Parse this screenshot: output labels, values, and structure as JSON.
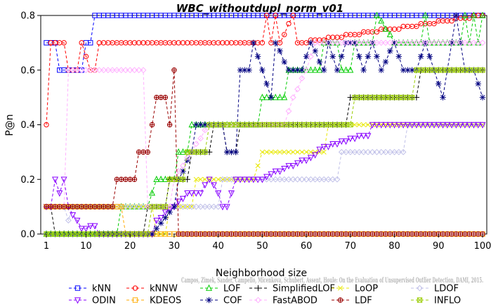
{
  "chart_data": {
    "type": "line",
    "title": "WBC_withoutdupl_norm_v01",
    "xlabel": "Neighborhood size",
    "ylabel": "P@n",
    "xlim": [
      1,
      100
    ],
    "ylim": [
      0,
      0.8
    ],
    "xticks": [
      1,
      10,
      20,
      30,
      40,
      50,
      60,
      70,
      80,
      90,
      100
    ],
    "yticks": [
      0.0,
      0.2,
      0.4,
      0.6,
      0.8
    ],
    "ytick_labels": [
      "0.0",
      "0.2",
      "0.4",
      "0.6",
      "0.8"
    ],
    "grid": false,
    "legend_position": "bottom",
    "credit": "Campos, Zimek, Sander, Campello, Micenkova, Schubert, Assent, Houle: On the Evaluation of Unsupervised Outlier Detection, DAMI, 2015.",
    "series": [
      {
        "name": "kNN",
        "color": "#0000ff",
        "marker": "square",
        "points": [
          [
            1,
            0.7
          ],
          [
            3,
            0.7
          ],
          [
            4,
            0.6
          ],
          [
            9,
            0.6
          ],
          [
            10,
            0.7
          ],
          [
            11,
            0.7
          ],
          [
            12,
            0.8
          ],
          [
            100,
            0.8
          ]
        ]
      },
      {
        "name": "kNNW",
        "color": "#ff0000",
        "marker": "circle",
        "points": [
          [
            1,
            0.4
          ],
          [
            2,
            0.7
          ],
          [
            5,
            0.7
          ],
          [
            6,
            0.6
          ],
          [
            8,
            0.6
          ],
          [
            9,
            0.7
          ],
          [
            11,
            0.6
          ],
          [
            12,
            0.6
          ],
          [
            13,
            0.7
          ],
          [
            50,
            0.7
          ],
          [
            51,
            0.8
          ],
          [
            52,
            0.7
          ],
          [
            53,
            0.8
          ],
          [
            54,
            0.7
          ],
          [
            57,
            0.8
          ],
          [
            58,
            0.7
          ],
          [
            100,
            0.8
          ]
        ]
      },
      {
        "name": "LOF",
        "color": "#00cc00",
        "marker": "triangle-up",
        "points": [
          [
            1,
            0
          ],
          [
            17,
            0
          ],
          [
            18,
            0.1
          ],
          [
            24,
            0.1
          ],
          [
            26,
            0.2
          ],
          [
            30,
            0.2
          ],
          [
            31,
            0.3
          ],
          [
            33,
            0.3
          ],
          [
            34,
            0.4
          ],
          [
            49,
            0.4
          ],
          [
            50,
            0.5
          ],
          [
            55,
            0.5
          ],
          [
            56,
            0.6
          ],
          [
            63,
            0.6
          ],
          [
            64,
            0.7
          ],
          [
            67,
            0.7
          ],
          [
            68,
            0.6
          ],
          [
            70,
            0.6
          ],
          [
            71,
            0.7
          ],
          [
            75,
            0.7
          ],
          [
            76,
            0.8
          ],
          [
            80,
            0.7
          ],
          [
            86,
            0.7
          ],
          [
            87,
            0.8
          ],
          [
            88,
            0.7
          ],
          [
            95,
            0.7
          ],
          [
            96,
            0.8
          ],
          [
            97,
            0.7
          ],
          [
            98,
            0.8
          ],
          [
            99,
            0.7
          ],
          [
            100,
            0.8
          ]
        ]
      },
      {
        "name": "SimplifiedLOF",
        "color": "#000000",
        "marker": "plus",
        "points": [
          [
            1,
            0.1
          ],
          [
            2,
            0.1
          ],
          [
            3,
            0
          ],
          [
            23,
            0
          ],
          [
            24,
            0.1
          ],
          [
            28,
            0.1
          ],
          [
            29,
            0.2
          ],
          [
            33,
            0.2
          ],
          [
            34,
            0.3
          ],
          [
            38,
            0.3
          ],
          [
            39,
            0.4
          ],
          [
            41,
            0.4
          ],
          [
            42,
            0.3
          ],
          [
            44,
            0.3
          ],
          [
            45,
            0.4
          ],
          [
            69,
            0.4
          ],
          [
            70,
            0.5
          ],
          [
            85,
            0.5
          ],
          [
            86,
            0.6
          ],
          [
            100,
            0.6
          ]
        ]
      },
      {
        "name": "LoOP",
        "color": "#e8e800",
        "marker": "x",
        "points": [
          [
            1,
            0.1
          ],
          [
            22,
            0.1
          ],
          [
            25,
            0.1
          ],
          [
            26,
            0
          ],
          [
            28,
            0
          ],
          [
            29,
            0.1
          ],
          [
            34,
            0.1
          ],
          [
            35,
            0.2
          ],
          [
            48,
            0.2
          ],
          [
            50,
            0.3
          ],
          [
            55,
            0.3
          ],
          [
            60,
            0.3
          ],
          [
            64,
            0.3
          ],
          [
            65,
            0.4
          ],
          [
            100,
            0.4
          ]
        ]
      },
      {
        "name": "LDOF",
        "color": "#c0c0e8",
        "marker": "diamond",
        "points": [
          [
            1,
            0.1
          ],
          [
            5,
            0.1
          ],
          [
            6,
            0.05
          ],
          [
            7,
            0.1
          ],
          [
            40,
            0.1
          ],
          [
            41,
            0.2
          ],
          [
            49,
            0.2
          ],
          [
            50,
            0.2
          ],
          [
            67,
            0.2
          ],
          [
            68,
            0.3
          ],
          [
            82,
            0.3
          ],
          [
            83,
            0.4
          ],
          [
            100,
            0.4
          ]
        ]
      },
      {
        "name": "ODIN",
        "color": "#8800ff",
        "marker": "triangle-down",
        "points": [
          [
            1,
            0.1
          ],
          [
            2,
            0.1
          ],
          [
            3,
            0.2
          ],
          [
            4,
            0.15
          ],
          [
            5,
            0.2
          ],
          [
            6,
            0.1
          ],
          [
            7,
            0.07
          ],
          [
            8,
            0.05
          ],
          [
            9,
            0.02
          ],
          [
            10,
            0.02
          ],
          [
            11,
            0.03
          ],
          [
            12,
            0.03
          ],
          [
            13,
            0
          ],
          [
            25,
            0
          ],
          [
            26,
            0.05
          ],
          [
            30,
            0.1
          ],
          [
            33,
            0.15
          ],
          [
            36,
            0.15
          ],
          [
            38,
            0.2
          ],
          [
            40,
            0.15
          ],
          [
            41,
            0.1
          ],
          [
            42,
            0.1
          ],
          [
            44,
            0.2
          ],
          [
            50,
            0.2
          ],
          [
            52,
            0.22
          ],
          [
            55,
            0.24
          ],
          [
            58,
            0.26
          ],
          [
            61,
            0.28
          ],
          [
            64,
            0.32
          ],
          [
            69,
            0.34
          ],
          [
            72,
            0.36
          ],
          [
            74,
            0.36
          ],
          [
            75,
            0.4
          ],
          [
            100,
            0.4
          ]
        ]
      },
      {
        "name": "KDEOS",
        "color": "#ffaa00",
        "marker": "square",
        "points": [
          [
            1,
            0.1
          ],
          [
            18,
            0.1
          ],
          [
            19,
            0
          ],
          [
            100,
            0
          ]
        ]
      },
      {
        "name": "COF",
        "color": "#000080",
        "marker": "asterisk",
        "points": [
          [
            1,
            0
          ],
          [
            24,
            0
          ],
          [
            25,
            0
          ],
          [
            30,
            0.1
          ],
          [
            31,
            0.2
          ],
          [
            34,
            0.3
          ],
          [
            35,
            0.4
          ],
          [
            41,
            0.4
          ],
          [
            42,
            0.3
          ],
          [
            44,
            0.3
          ],
          [
            45,
            0.6
          ],
          [
            47,
            0.6
          ],
          [
            48,
            0.7
          ],
          [
            52,
            0.5
          ],
          [
            53,
            0.7
          ],
          [
            56,
            0.6
          ],
          [
            59,
            0.6
          ],
          [
            61,
            0.7
          ],
          [
            64,
            0.6
          ],
          [
            65,
            0.7
          ],
          [
            67,
            0.6
          ],
          [
            69,
            0.7
          ],
          [
            71,
            0.7
          ],
          [
            73,
            0.6
          ],
          [
            75,
            0.7
          ],
          [
            77,
            0.6
          ],
          [
            80,
            0.7
          ],
          [
            82,
            0.6
          ],
          [
            85,
            0.6
          ],
          [
            87,
            0.7
          ],
          [
            89,
            0.6
          ],
          [
            91,
            0.5
          ],
          [
            92,
            0.6
          ],
          [
            94,
            0.8
          ],
          [
            96,
            0.6
          ],
          [
            98,
            0.6
          ],
          [
            100,
            0.5
          ]
        ]
      },
      {
        "name": "FastABOD",
        "color": "#ffb0ff",
        "marker": "diamond",
        "points": [
          [
            1,
            0.1
          ],
          [
            5,
            0.1
          ],
          [
            6,
            0.6
          ],
          [
            11,
            0.6
          ],
          [
            12,
            0.6
          ],
          [
            13,
            0.6
          ],
          [
            14,
            0.6
          ],
          [
            15,
            0.6
          ],
          [
            16,
            0.6
          ],
          [
            17,
            0.6
          ],
          [
            18,
            0.6
          ],
          [
            19,
            0.6
          ],
          [
            20,
            0.6
          ],
          [
            21,
            0.6
          ],
          [
            22,
            0.6
          ],
          [
            23,
            0.6
          ],
          [
            24,
            0.1
          ],
          [
            29,
            0.1
          ],
          [
            30,
            0.2
          ],
          [
            34,
            0.3
          ],
          [
            38,
            0.4
          ],
          [
            49,
            0.4
          ],
          [
            50,
            0.4
          ],
          [
            54,
            0.4
          ],
          [
            55,
            0.4
          ],
          [
            57,
            0.5
          ],
          [
            60,
            0.6
          ],
          [
            62,
            0.7
          ],
          [
            75,
            0.7
          ],
          [
            76,
            0.7
          ],
          [
            100,
            0.7
          ]
        ]
      },
      {
        "name": "LDF",
        "color": "#990000",
        "marker": "circle-plus",
        "points": [
          [
            1,
            0.1
          ],
          [
            16,
            0.1
          ],
          [
            17,
            0.2
          ],
          [
            21,
            0.2
          ],
          [
            22,
            0.3
          ],
          [
            24,
            0.3
          ],
          [
            25,
            0.4
          ],
          [
            26,
            0.5
          ],
          [
            28,
            0.5
          ],
          [
            29,
            0.4
          ],
          [
            30,
            0.6
          ],
          [
            31,
            0
          ],
          [
            100,
            0
          ]
        ]
      },
      {
        "name": "INFLO",
        "color": "#99cc00",
        "marker": "square-x",
        "points": [
          [
            1,
            0
          ],
          [
            24,
            0
          ],
          [
            25,
            0.1
          ],
          [
            28,
            0.1
          ],
          [
            29,
            0.2
          ],
          [
            32,
            0.2
          ],
          [
            33,
            0.3
          ],
          [
            37,
            0.3
          ],
          [
            38,
            0.4
          ],
          [
            70,
            0.4
          ],
          [
            71,
            0.5
          ],
          [
            84,
            0.5
          ],
          [
            85,
            0.6
          ],
          [
            100,
            0.6
          ]
        ]
      }
    ]
  }
}
